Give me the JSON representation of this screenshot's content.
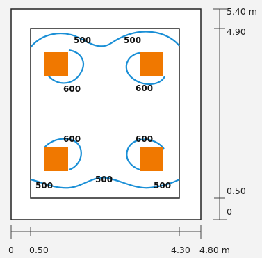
{
  "colors": {
    "background": "#f3f3f3",
    "room_fill": "#ffffff",
    "wall_stroke": "#222222",
    "contour": "#1a8fd6",
    "luminaire": "#f07800",
    "dimension_line": "#444444"
  },
  "dimensions": {
    "horizontal": {
      "ticks": [
        "0",
        "0.50",
        "4.30",
        "4.80 m"
      ]
    },
    "vertical": {
      "ticks": [
        "5.40 m",
        "4.90",
        "0.50",
        "0"
      ]
    }
  },
  "contour_labels": {
    "top_left_500": "500",
    "top_right_500": "500",
    "top_left_600": "600",
    "top_right_600": "600",
    "bottom_left_600": "600",
    "bottom_right_600": "600",
    "bottom_left_500": "500",
    "bottom_center_500": "500",
    "bottom_right_500": "500"
  },
  "luminaires": {
    "count": 4,
    "icon": "square-luminaire-icon"
  }
}
